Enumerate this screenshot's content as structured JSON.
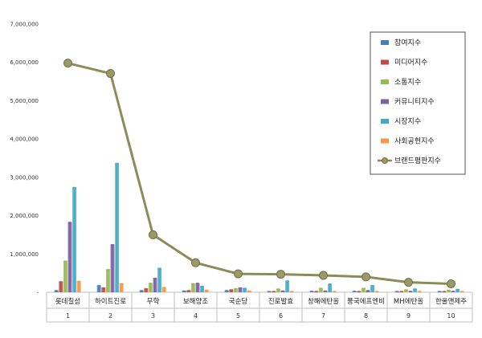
{
  "chart_data": {
    "type": "bar",
    "categories": [
      "롯데칠성",
      "하이트진로",
      "무학",
      "보해양조",
      "국순당",
      "진로발효",
      "창해에탄올",
      "풍국에프엔비",
      "MH에탄올",
      "한울앤제주"
    ],
    "ranks": [
      "1",
      "2",
      "3",
      "4",
      "5",
      "6",
      "7",
      "8",
      "9",
      "10"
    ],
    "ylim": [
      0,
      7000000
    ],
    "yticks": [
      "7,000,000",
      "6,000,000",
      "5,000,000",
      "4,000,000",
      "3,000,000",
      "2,000,000",
      "1,000,000",
      "-"
    ],
    "ytick_values": [
      7000000,
      6000000,
      5000000,
      4000000,
      3000000,
      2000000,
      1000000,
      0
    ],
    "series": [
      {
        "name": "참여지수",
        "color": "#4a7ebb",
        "values": [
          40000,
          170000,
          40000,
          30000,
          40000,
          10000,
          20000,
          20000,
          10000,
          10000
        ]
      },
      {
        "name": "미디어지수",
        "color": "#be4b48",
        "values": [
          270000,
          110000,
          90000,
          40000,
          60000,
          10000,
          10000,
          10000,
          5000,
          5000
        ]
      },
      {
        "name": "소통지수",
        "color": "#98b954",
        "values": [
          810000,
          590000,
          230000,
          220000,
          90000,
          80000,
          100000,
          100000,
          60000,
          50000
        ]
      },
      {
        "name": "커뮤니티지수",
        "color": "#7d60a0",
        "values": [
          1820000,
          1240000,
          360000,
          230000,
          110000,
          30000,
          30000,
          40000,
          20000,
          20000
        ]
      },
      {
        "name": "시장지수",
        "color": "#46aac5",
        "values": [
          2730000,
          3360000,
          620000,
          150000,
          100000,
          290000,
          210000,
          170000,
          80000,
          70000
        ]
      },
      {
        "name": "사회공헌지수",
        "color": "#f79646",
        "values": [
          280000,
          220000,
          120000,
          50000,
          30000,
          5000,
          5000,
          5000,
          5000,
          5000
        ]
      }
    ],
    "line_series": {
      "name": "브랜드평판지수",
      "color": "#8c8c5a",
      "values": [
        5980000,
        5710000,
        1500000,
        770000,
        480000,
        470000,
        440000,
        400000,
        260000,
        220000
      ]
    },
    "legend": "top-right",
    "grid": false
  }
}
